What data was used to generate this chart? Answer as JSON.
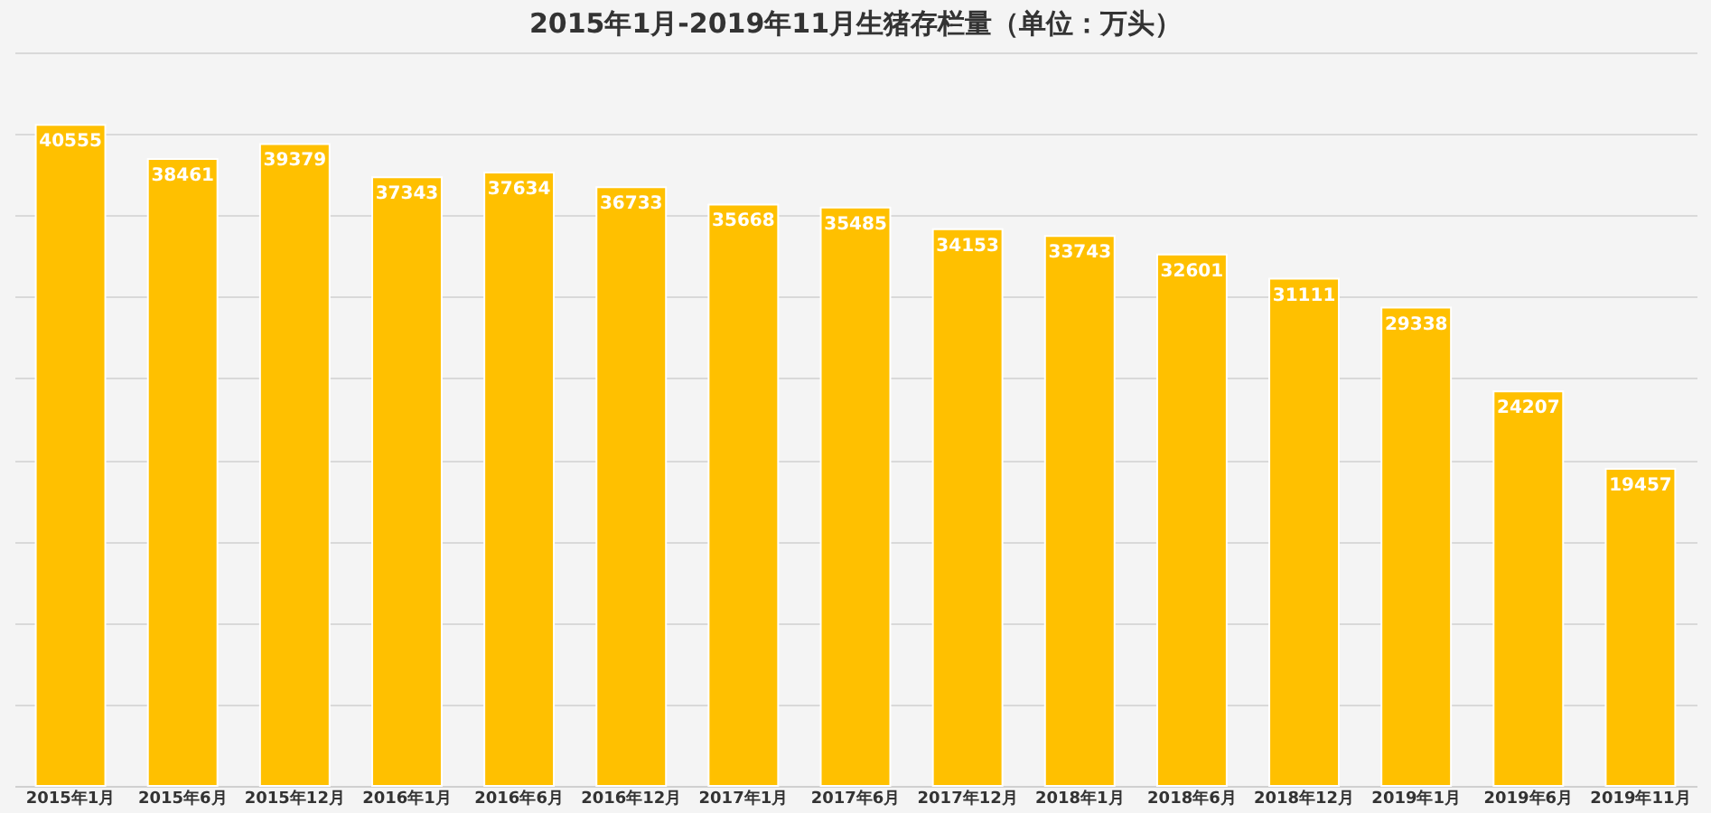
{
  "chart_data": {
    "type": "bar",
    "title": "2015年1月-2019年11月生猪存栏量（单位：万头）",
    "categories": [
      "2015年1月",
      "2015年6月",
      "2015年12月",
      "2016年1月",
      "2016年6月",
      "2016年12月",
      "2017年1月",
      "2017年6月",
      "2017年12月",
      "2018年1月",
      "2018年6月",
      "2018年12月",
      "2019年1月",
      "2019年6月",
      "2019年11月"
    ],
    "values": [
      40555,
      38461,
      39379,
      37343,
      37634,
      36733,
      35668,
      35485,
      34153,
      33743,
      32601,
      31111,
      29338,
      24207,
      19457
    ],
    "color": "#ffc000",
    "data_labels": true,
    "grid": "y",
    "tick_labels": "x",
    "ylim": [
      0,
      45000
    ],
    "yticks": [
      {
        "value": 0,
        "label": null
      },
      {
        "value": 5000,
        "label": null
      },
      {
        "value": 10000,
        "label": null
      },
      {
        "value": 15000,
        "label": null
      },
      {
        "value": 20000,
        "label": null
      },
      {
        "value": 25000,
        "label": null
      },
      {
        "value": 30000,
        "label": null
      },
      {
        "value": 35000,
        "label": null
      },
      {
        "value": 40000,
        "label": null
      },
      {
        "value": 45000,
        "label": null
      }
    ]
  }
}
